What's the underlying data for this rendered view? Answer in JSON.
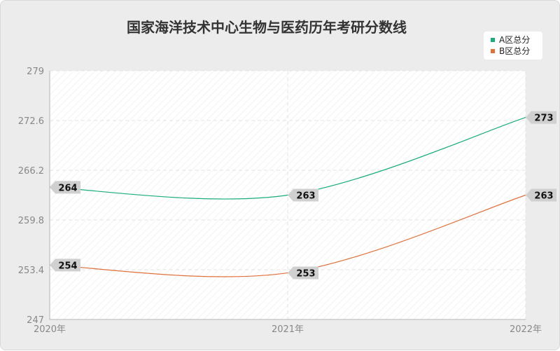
{
  "chart_data": {
    "type": "line",
    "title": "国家海洋技术中心生物与医药历年考研分数线",
    "categories": [
      "2020年",
      "2021年",
      "2022年"
    ],
    "series": [
      {
        "name": "A区总分",
        "values": [
          264,
          263,
          273
        ],
        "color": "#1aab7f"
      },
      {
        "name": "B区总分",
        "values": [
          254,
          253,
          263
        ],
        "color": "#e0713c"
      }
    ],
    "y_ticks": [
      "279",
      "272.6",
      "266.2",
      "259.8",
      "253.4",
      "247"
    ],
    "ylim": [
      247,
      279
    ],
    "grid": true,
    "smooth": true,
    "legend_position": "top-right"
  }
}
